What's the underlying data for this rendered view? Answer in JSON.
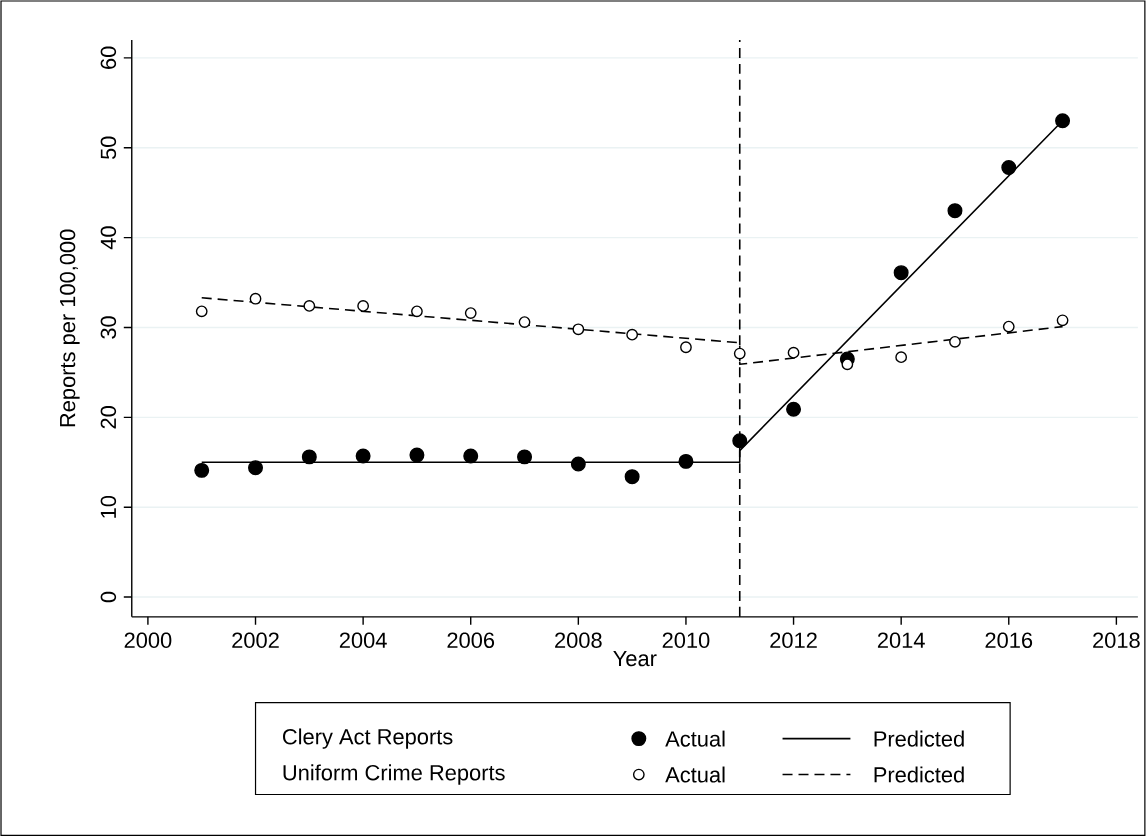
{
  "chart_data": {
    "type": "scatter",
    "xlabel": "Year",
    "ylabel": "Reports per 100,000",
    "xlim": [
      1999.7,
      2018.4
    ],
    "ylim": [
      -2.2,
      62
    ],
    "xticks": [
      2000,
      2002,
      2004,
      2006,
      2008,
      2010,
      2012,
      2014,
      2016,
      2018
    ],
    "yticks": [
      0,
      10,
      20,
      30,
      40,
      50,
      60
    ],
    "grid": "y",
    "legend": "bottom",
    "ref_lines": [
      {
        "axis": "x",
        "value": 2011,
        "line_style": "dashed"
      }
    ],
    "annotations": [
      "Clery Act Reports",
      "Uniform Crime Reports"
    ],
    "series": [
      {
        "name": "Actual",
        "marker": "circle",
        "color": "#000000",
        "x": [
          2001,
          2002,
          2003,
          2004,
          2005,
          2006,
          2007,
          2008,
          2009,
          2010,
          2011,
          2012,
          2013,
          2014,
          2015,
          2016,
          2017
        ],
        "values": [
          14.1,
          14.4,
          15.6,
          15.7,
          15.8,
          15.7,
          15.6,
          14.8,
          13.4,
          15.1,
          17.4,
          20.9,
          26.5,
          36.1,
          43.0,
          47.8,
          53.0
        ]
      },
      {
        "name": "Predicted",
        "type": "line",
        "line_style": "solid",
        "color": "#000000",
        "x": [
          2001,
          2011,
          2011,
          2017
        ],
        "values": [
          15.0,
          15.0,
          16.3,
          53.0
        ]
      },
      {
        "name": "Actual",
        "marker": "circle",
        "color": "#000000",
        "x": [
          2001,
          2002,
          2003,
          2004,
          2005,
          2006,
          2007,
          2008,
          2009,
          2010,
          2011,
          2012,
          2013,
          2014,
          2015,
          2016,
          2017
        ],
        "values": [
          31.8,
          33.2,
          32.4,
          32.4,
          31.8,
          31.6,
          30.6,
          29.8,
          29.2,
          27.8,
          27.1,
          27.2,
          25.9,
          26.7,
          28.4,
          30.1,
          30.8
        ]
      },
      {
        "name": "Predicted",
        "type": "line",
        "line_style": "dashed",
        "color": "#000000",
        "x": [
          2001,
          2011,
          2011,
          2017
        ],
        "values": [
          33.3,
          28.3,
          25.9,
          30.1
        ]
      }
    ]
  }
}
